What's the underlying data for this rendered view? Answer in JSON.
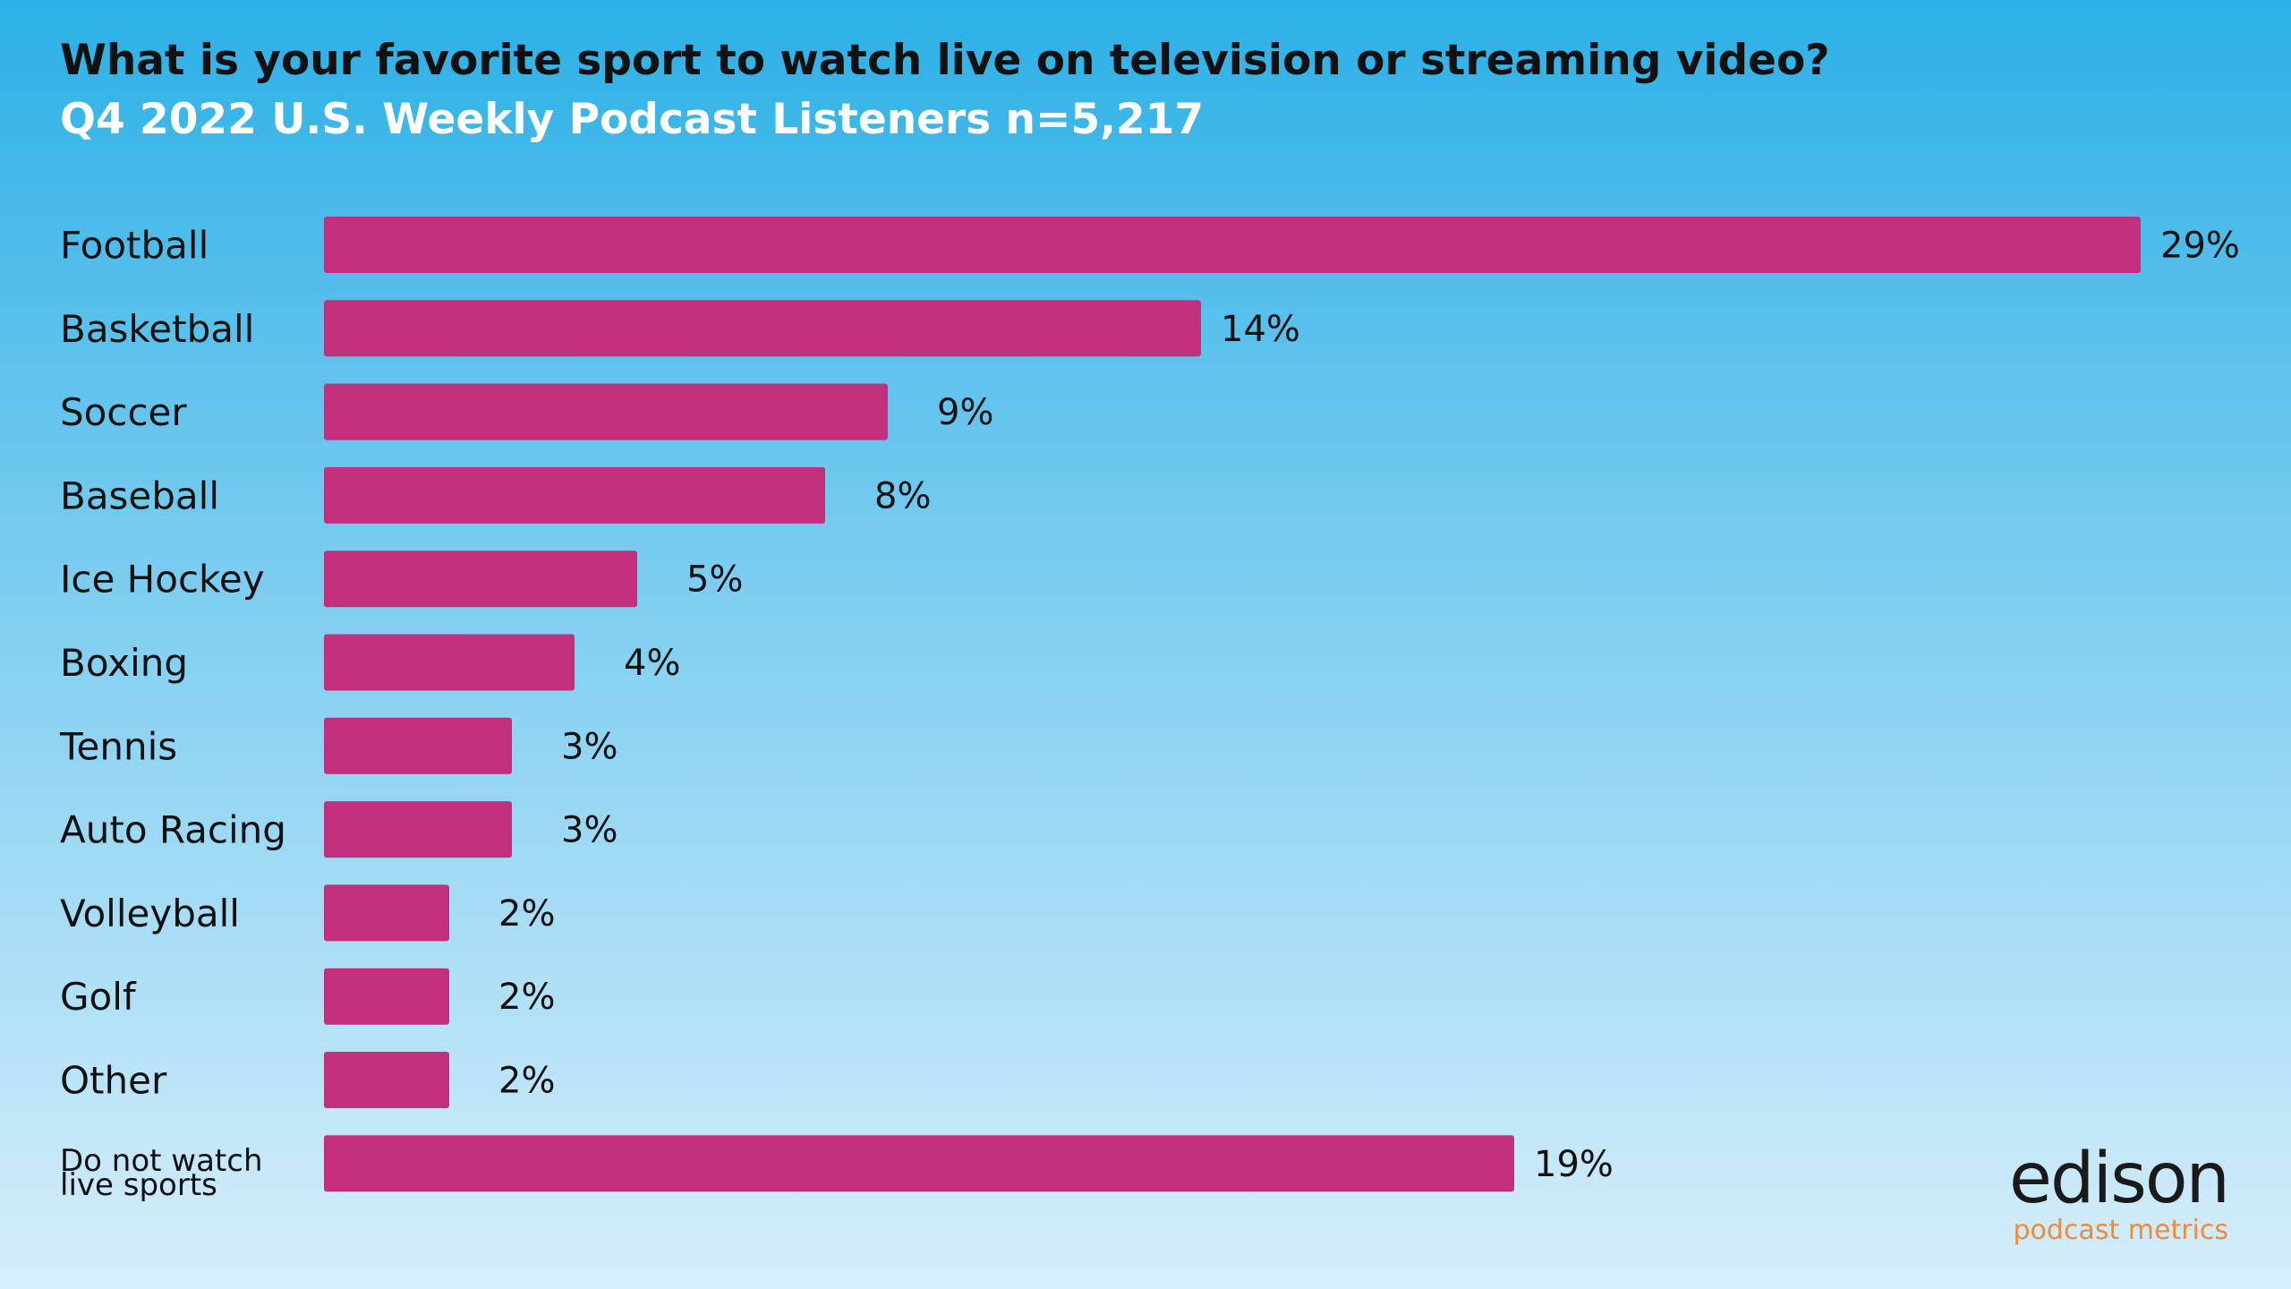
{
  "header": {
    "title": "What is your favorite sport to watch live on television or streaming video?",
    "subtitle": "Q4 2022 U.S. Weekly Podcast Listeners n=5,217"
  },
  "colors": {
    "bar": "#c12f7d",
    "title": "#111111",
    "subtitle": "#ffffff",
    "logo_sub": "#f08a3c"
  },
  "chart_data": {
    "type": "bar",
    "orientation": "horizontal",
    "title": "What is your favorite sport to watch live on television or streaming video?",
    "subtitle": "Q4 2022 U.S. Weekly Podcast Listeners n=5,217",
    "categories": [
      "Football",
      "Basketball",
      "Soccer",
      "Baseball",
      "Ice Hockey",
      "Boxing",
      "Tennis",
      "Auto Racing",
      "Volleyball",
      "Golf",
      "Other",
      "Do not watch live sports"
    ],
    "category_lines": [
      [
        "Football"
      ],
      [
        "Basketball"
      ],
      [
        "Soccer"
      ],
      [
        "Baseball"
      ],
      [
        "Ice Hockey"
      ],
      [
        "Boxing"
      ],
      [
        "Tennis"
      ],
      [
        "Auto Racing"
      ],
      [
        "Volleyball"
      ],
      [
        "Golf"
      ],
      [
        "Other"
      ],
      [
        "Do not watch",
        "live sports"
      ]
    ],
    "values": [
      29,
      14,
      9,
      8,
      5,
      4,
      3,
      3,
      2,
      2,
      2,
      19
    ],
    "value_labels": [
      "29%",
      "14%",
      "9%",
      "8%",
      "5%",
      "4%",
      "3%",
      "3%",
      "2%",
      "2%",
      "2%",
      "19%"
    ],
    "xlim": [
      0,
      29
    ],
    "grid": false,
    "legend": "none"
  },
  "logo": {
    "name": "edison",
    "tagline": "podcast metrics"
  }
}
